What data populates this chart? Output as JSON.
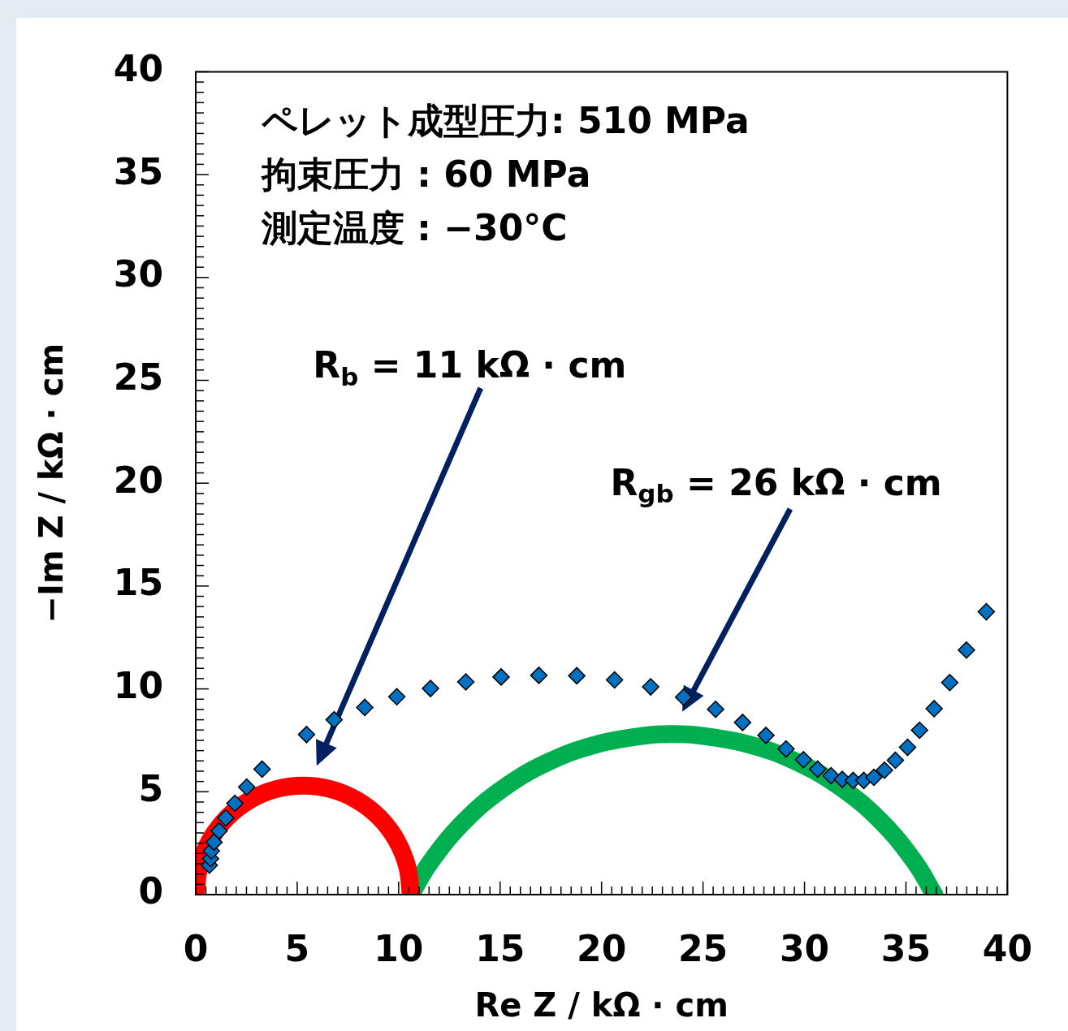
{
  "chart_data": {
    "type": "scatter",
    "xlabel": "Re Z / kΩ · cm",
    "ylabel": "−Im Z / kΩ · cm",
    "xlim": [
      0,
      40
    ],
    "ylim": [
      0,
      40
    ],
    "xticks": [
      0,
      {
        "value": 0.5,
        "label": null
      },
      {
        "value": 1,
        "label": null
      },
      {
        "value": 1.5,
        "label": null
      },
      {
        "value": 2,
        "label": null
      },
      {
        "value": 2.5,
        "label": null
      },
      {
        "value": 3,
        "label": null
      },
      {
        "value": 3.5,
        "label": null
      },
      {
        "value": 4,
        "label": null
      },
      {
        "value": 4.5,
        "label": null
      },
      5,
      {
        "value": 5.5,
        "label": null
      },
      {
        "value": 6,
        "label": null
      },
      {
        "value": 6.5,
        "label": null
      },
      {
        "value": 7,
        "label": null
      },
      {
        "value": 7.5,
        "label": null
      },
      {
        "value": 8,
        "label": null
      },
      {
        "value": 8.5,
        "label": null
      },
      {
        "value": 9,
        "label": null
      },
      {
        "value": 9.5,
        "label": null
      },
      10,
      {
        "value": 10.5,
        "label": null
      },
      {
        "value": 11,
        "label": null
      },
      {
        "value": 11.5,
        "label": null
      },
      {
        "value": 12,
        "label": null
      },
      {
        "value": 12.5,
        "label": null
      },
      {
        "value": 13,
        "label": null
      },
      {
        "value": 13.5,
        "label": null
      },
      {
        "value": 14,
        "label": null
      },
      {
        "value": 14.5,
        "label": null
      },
      15,
      {
        "value": 15.5,
        "label": null
      },
      {
        "value": 16,
        "label": null
      },
      {
        "value": 16.5,
        "label": null
      },
      {
        "value": 17,
        "label": null
      },
      {
        "value": 17.5,
        "label": null
      },
      {
        "value": 18,
        "label": null
      },
      {
        "value": 18.5,
        "label": null
      },
      {
        "value": 19,
        "label": null
      },
      {
        "value": 19.5,
        "label": null
      },
      20,
      {
        "value": 20.5,
        "label": null
      },
      {
        "value": 21,
        "label": null
      },
      {
        "value": 21.5,
        "label": null
      },
      {
        "value": 22,
        "label": null
      },
      {
        "value": 22.5,
        "label": null
      },
      {
        "value": 23,
        "label": null
      },
      {
        "value": 23.5,
        "label": null
      },
      {
        "value": 24,
        "label": null
      },
      {
        "value": 24.5,
        "label": null
      },
      25,
      {
        "value": 25.5,
        "label": null
      },
      {
        "value": 26,
        "label": null
      },
      {
        "value": 26.5,
        "label": null
      },
      {
        "value": 27,
        "label": null
      },
      {
        "value": 27.5,
        "label": null
      },
      {
        "value": 28,
        "label": null
      },
      {
        "value": 28.5,
        "label": null
      },
      {
        "value": 29,
        "label": null
      },
      {
        "value": 29.5,
        "label": null
      },
      30,
      {
        "value": 30.5,
        "label": null
      },
      {
        "value": 31,
        "label": null
      },
      {
        "value": 31.5,
        "label": null
      },
      {
        "value": 32,
        "label": null
      },
      {
        "value": 32.5,
        "label": null
      },
      {
        "value": 33,
        "label": null
      },
      {
        "value": 33.5,
        "label": null
      },
      {
        "value": 34,
        "label": null
      },
      {
        "value": 34.5,
        "label": null
      },
      35,
      {
        "value": 35.5,
        "label": null
      },
      {
        "value": 36,
        "label": null
      },
      {
        "value": 36.5,
        "label": null
      },
      {
        "value": 37,
        "label": null
      },
      {
        "value": 37.5,
        "label": null
      },
      {
        "value": 38,
        "label": null
      },
      {
        "value": 38.5,
        "label": null
      },
      {
        "value": 39,
        "label": null
      },
      {
        "value": 39.5,
        "label": null
      },
      40
    ],
    "yticks": [
      0,
      {
        "value": 0.5,
        "label": null
      },
      {
        "value": 1,
        "label": null
      },
      {
        "value": 1.5,
        "label": null
      },
      {
        "value": 2,
        "label": null
      },
      {
        "value": 2.5,
        "label": null
      },
      {
        "value": 3,
        "label": null
      },
      {
        "value": 3.5,
        "label": null
      },
      {
        "value": 4,
        "label": null
      },
      {
        "value": 4.5,
        "label": null
      },
      5,
      {
        "value": 5.5,
        "label": null
      },
      {
        "value": 6,
        "label": null
      },
      {
        "value": 6.5,
        "label": null
      },
      {
        "value": 7,
        "label": null
      },
      {
        "value": 7.5,
        "label": null
      },
      {
        "value": 8,
        "label": null
      },
      {
        "value": 8.5,
        "label": null
      },
      {
        "value": 9,
        "label": null
      },
      {
        "value": 9.5,
        "label": null
      },
      10,
      {
        "value": 10.5,
        "label": null
      },
      {
        "value": 11,
        "label": null
      },
      {
        "value": 11.5,
        "label": null
      },
      {
        "value": 12,
        "label": null
      },
      {
        "value": 12.5,
        "label": null
      },
      {
        "value": 13,
        "label": null
      },
      {
        "value": 13.5,
        "label": null
      },
      {
        "value": 14,
        "label": null
      },
      {
        "value": 14.5,
        "label": null
      },
      15,
      {
        "value": 15.5,
        "label": null
      },
      {
        "value": 16,
        "label": null
      },
      {
        "value": 16.5,
        "label": null
      },
      {
        "value": 17,
        "label": null
      },
      {
        "value": 17.5,
        "label": null
      },
      {
        "value": 18,
        "label": null
      },
      {
        "value": 18.5,
        "label": null
      },
      {
        "value": 19,
        "label": null
      },
      {
        "value": 19.5,
        "label": null
      },
      20,
      {
        "value": 20.5,
        "label": null
      },
      {
        "value": 21,
        "label": null
      },
      {
        "value": 21.5,
        "label": null
      },
      {
        "value": 22,
        "label": null
      },
      {
        "value": 22.5,
        "label": null
      },
      {
        "value": 23,
        "label": null
      },
      {
        "value": 23.5,
        "label": null
      },
      {
        "value": 24,
        "label": null
      },
      {
        "value": 24.5,
        "label": null
      },
      25,
      {
        "value": 25.5,
        "label": null
      },
      {
        "value": 26,
        "label": null
      },
      {
        "value": 26.5,
        "label": null
      },
      {
        "value": 27,
        "label": null
      },
      {
        "value": 27.5,
        "label": null
      },
      {
        "value": 28,
        "label": null
      },
      {
        "value": 28.5,
        "label": null
      },
      {
        "value": 29,
        "label": null
      },
      {
        "value": 29.5,
        "label": null
      },
      30,
      {
        "value": 30.5,
        "label": null
      },
      {
        "value": 31,
        "label": null
      },
      {
        "value": 31.5,
        "label": null
      },
      {
        "value": 32,
        "label": null
      },
      {
        "value": 32.5,
        "label": null
      },
      {
        "value": 33,
        "label": null
      },
      {
        "value": 33.5,
        "label": null
      },
      {
        "value": 34,
        "label": null
      },
      {
        "value": 34.5,
        "label": null
      },
      35,
      {
        "value": 35.5,
        "label": null
      },
      {
        "value": 36,
        "label": null
      },
      {
        "value": 36.5,
        "label": null
      },
      {
        "value": 37,
        "label": null
      },
      {
        "value": 37.5,
        "label": null
      },
      {
        "value": 38,
        "label": null
      },
      {
        "value": 38.5,
        "label": null
      },
      {
        "value": 39,
        "label": null
      },
      {
        "value": 39.5,
        "label": null
      },
      40
    ],
    "grid": false,
    "legend": false,
    "marker": "diamond",
    "series": [
      {
        "color": "#0070c0",
        "x": [
          0.67,
          0.73,
          0.77,
          0.9,
          1.15,
          1.48,
          1.93,
          2.51,
          3.27,
          5.46,
          6.82,
          8.33,
          9.91,
          11.57,
          13.31,
          15.05,
          16.91,
          18.78,
          20.64,
          22.42,
          24.04,
          25.62,
          26.95,
          28.1,
          29.09,
          29.95,
          30.65,
          31.31,
          31.86,
          32.4,
          32.92,
          33.42,
          33.94,
          34.48,
          35.08,
          35.67,
          36.39,
          37.16,
          37.98,
          38.96
        ],
        "values": [
          1.43,
          1.75,
          2.12,
          2.55,
          3.1,
          3.73,
          4.44,
          5.23,
          6.1,
          7.78,
          8.5,
          9.1,
          9.62,
          10.02,
          10.34,
          10.58,
          10.66,
          10.64,
          10.44,
          10.1,
          9.6,
          9.01,
          8.37,
          7.74,
          7.08,
          6.56,
          6.1,
          5.78,
          5.6,
          5.55,
          5.55,
          5.7,
          6.05,
          6.53,
          7.16,
          7.99,
          9.04,
          10.31,
          11.89,
          13.75
        ]
      },
      {
        "type": "line",
        "color": "#ff0000",
        "marker": "none",
        "x": [
          0,
          0.18,
          0.71,
          1.55,
          2.65,
          3.93,
          5.3,
          6.67,
          7.95,
          9.05,
          9.89,
          10.42,
          10.6
        ],
        "values": [
          0,
          1.37,
          2.65,
          3.75,
          4.59,
          5.12,
          5.3,
          5.12,
          4.59,
          3.75,
          2.65,
          1.37,
          0
        ]
      },
      {
        "type": "line",
        "color": "#00b050",
        "marker": "none",
        "x": [
          10.6,
          11.57,
          13.2,
          15.14,
          17.34,
          19.73,
          22.23,
          23.5,
          24.77,
          27.27,
          29.66,
          31.86,
          33.8,
          35.43,
          36.4
        ],
        "values": [
          0,
          1.59,
          3.53,
          5.16,
          6.43,
          7.3,
          7.74,
          7.8,
          7.74,
          7.3,
          6.43,
          5.16,
          3.53,
          1.59,
          0
        ]
      }
    ],
    "annotations": [
      "ペレット成型圧力: 510 MPa",
      "拘束圧力 : 60 MPa",
      "測定温度 : −30°C",
      "R$_{b}$ = 11 kΩ · cm",
      "R$_{gb}$ = 26 kΩ · cm"
    ]
  }
}
